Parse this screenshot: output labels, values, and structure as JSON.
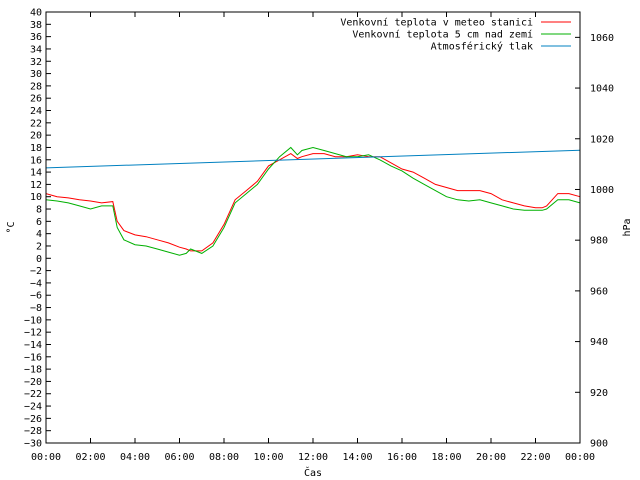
{
  "chart_data": {
    "type": "line",
    "xlabel": "Čas",
    "ylabel_left": "°C",
    "ylabel_right": "hPa",
    "x_ticks": [
      "00:00",
      "02:00",
      "04:00",
      "06:00",
      "08:00",
      "10:00",
      "12:00",
      "14:00",
      "16:00",
      "18:00",
      "20:00",
      "22:00",
      "00:00"
    ],
    "ylim_left": [
      -30,
      40
    ],
    "yticks_left": [
      -30,
      -28,
      -26,
      -24,
      -22,
      -20,
      -18,
      -16,
      -14,
      -12,
      -10,
      -8,
      -6,
      -4,
      -2,
      0,
      2,
      4,
      6,
      8,
      10,
      12,
      14,
      16,
      18,
      20,
      22,
      24,
      26,
      28,
      30,
      32,
      34,
      36,
      38,
      40
    ],
    "ylim_right": [
      900,
      1070
    ],
    "yticks_right": [
      900,
      920,
      940,
      960,
      980,
      1000,
      1020,
      1040,
      1060
    ],
    "xlim_hours": [
      0,
      24
    ],
    "legend_position": "top-right",
    "series": [
      {
        "name": "Venkovní teplota v meteo stanici",
        "color": "#ff0000",
        "axis": "left",
        "x_hours": [
          0,
          0.5,
          1,
          1.5,
          2,
          2.5,
          3,
          3.2,
          3.5,
          4,
          4.5,
          5,
          5.5,
          6,
          6.3,
          6.5,
          7,
          7.5,
          8,
          8.5,
          9,
          9.5,
          10,
          10.5,
          11,
          11.3,
          11.5,
          12,
          12.5,
          13,
          13.5,
          14,
          14.5,
          15,
          15.5,
          16,
          16.5,
          17,
          17.5,
          18,
          18.5,
          19,
          19.5,
          20,
          20.5,
          21,
          21.5,
          22,
          22.3,
          22.5,
          23,
          23.5,
          24
        ],
        "values": [
          10.5,
          10,
          9.8,
          9.5,
          9.3,
          9,
          9.2,
          6,
          4.5,
          3.8,
          3.5,
          3,
          2.5,
          1.8,
          1.5,
          1.2,
          1.2,
          2.5,
          5.5,
          9.5,
          11,
          12.5,
          15,
          16,
          17,
          16.2,
          16.5,
          17,
          17,
          16.5,
          16.5,
          16.8,
          16.5,
          16.5,
          15.5,
          14.5,
          14,
          13,
          12,
          11.5,
          11,
          11,
          11,
          10.5,
          9.5,
          9,
          8.5,
          8.2,
          8.2,
          8.5,
          10.5,
          10.5,
          10
        ]
      },
      {
        "name": "Venkovní teplota 5 cm nad zemí",
        "color": "#00b000",
        "axis": "left",
        "x_hours": [
          0,
          0.5,
          1,
          1.5,
          2,
          2.5,
          3,
          3.2,
          3.5,
          4,
          4.5,
          5,
          5.5,
          6,
          6.3,
          6.5,
          7,
          7.5,
          8,
          8.5,
          9,
          9.5,
          10,
          10.5,
          11,
          11.3,
          11.5,
          12,
          12.5,
          13,
          13.5,
          14,
          14.5,
          15,
          15.5,
          16,
          16.5,
          17,
          17.5,
          18,
          18.5,
          19,
          19.5,
          20,
          20.5,
          21,
          21.5,
          22,
          22.3,
          22.5,
          23,
          23.5,
          24
        ],
        "values": [
          9.5,
          9.3,
          9,
          8.5,
          8,
          8.5,
          8.5,
          5,
          3,
          2.2,
          2,
          1.5,
          1,
          0.5,
          0.8,
          1.5,
          0.8,
          2,
          5,
          9,
          10.5,
          12,
          14.5,
          16.5,
          18,
          16.8,
          17.5,
          18,
          17.5,
          17,
          16.5,
          16.5,
          16.8,
          16,
          15,
          14.2,
          13,
          12,
          11,
          10,
          9.5,
          9.3,
          9.5,
          9,
          8.5,
          8,
          7.8,
          7.8,
          7.8,
          8,
          9.5,
          9.5,
          9
        ]
      },
      {
        "name": "Atmosférický tlak",
        "color": "#0080c0",
        "axis": "right",
        "x_hours": [
          0,
          24
        ],
        "values": [
          1008.5,
          1015.5
        ]
      }
    ]
  }
}
